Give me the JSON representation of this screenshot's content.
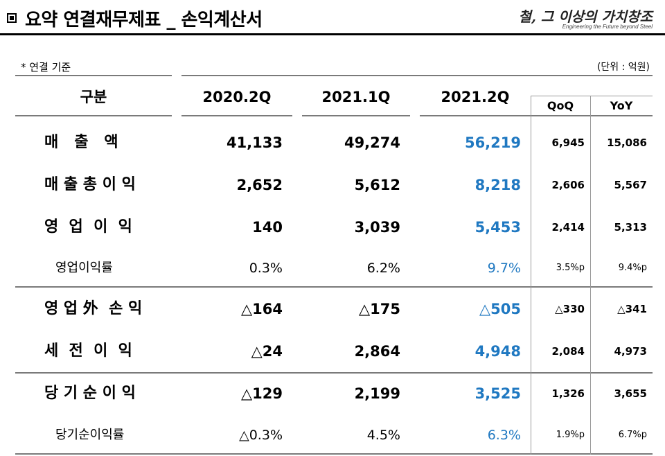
{
  "header": {
    "title": "▣ 요약 연결재무제표 _ 손익계산서",
    "logo_text": "철, 그 이상의 가치창조",
    "logo_sub": "Engineering the Future beyond Steel"
  },
  "note": "* 연결 기준",
  "unit": "(단위 : 억원)",
  "table": {
    "columns": [
      "구분",
      "2020.2Q",
      "2021.1Q",
      "2021.2Q",
      "QoQ",
      "YoY"
    ],
    "rows": [
      {
        "label": "매   출   액",
        "c1": "41,133",
        "c2": "49,274",
        "c3": "56,219",
        "qoq": "6,945",
        "yoy": "15,086"
      },
      {
        "label": "매 출 총 이 익",
        "c1": "2,652",
        "c2": "5,612",
        "c3": "8,218",
        "qoq": "2,606",
        "yoy": "5,567"
      },
      {
        "label": "영  업  이  익",
        "c1": "140",
        "c2": "3,039",
        "c3": "5,453",
        "qoq": "2,414",
        "yoy": "5,313"
      },
      {
        "label": "영업이익률",
        "c1": "0.3%",
        "c2": "6.2%",
        "c3": "9.7%",
        "qoq": "3.5%p",
        "yoy": "9.4%p"
      },
      {
        "label": "영 업 外  손 익",
        "c1": "△164",
        "c2": "△175",
        "c3": "△505",
        "qoq": "△330",
        "yoy": "△341"
      },
      {
        "label": "세  전  이  익",
        "c1": "△24",
        "c2": "2,864",
        "c3": "4,948",
        "qoq": "2,084",
        "yoy": "4,973"
      },
      {
        "label": "당 기 순 이 익",
        "c1": "△129",
        "c2": "2,199",
        "c3": "3,525",
        "qoq": "1,326",
        "yoy": "3,655"
      },
      {
        "label": "당기순이익률",
        "c1": "△0.3%",
        "c2": "4.5%",
        "c3": "6.3%",
        "qoq": "1.9%p",
        "yoy": "6.7%p"
      }
    ]
  },
  "colors": {
    "accent_blue": "#1f78c1"
  }
}
